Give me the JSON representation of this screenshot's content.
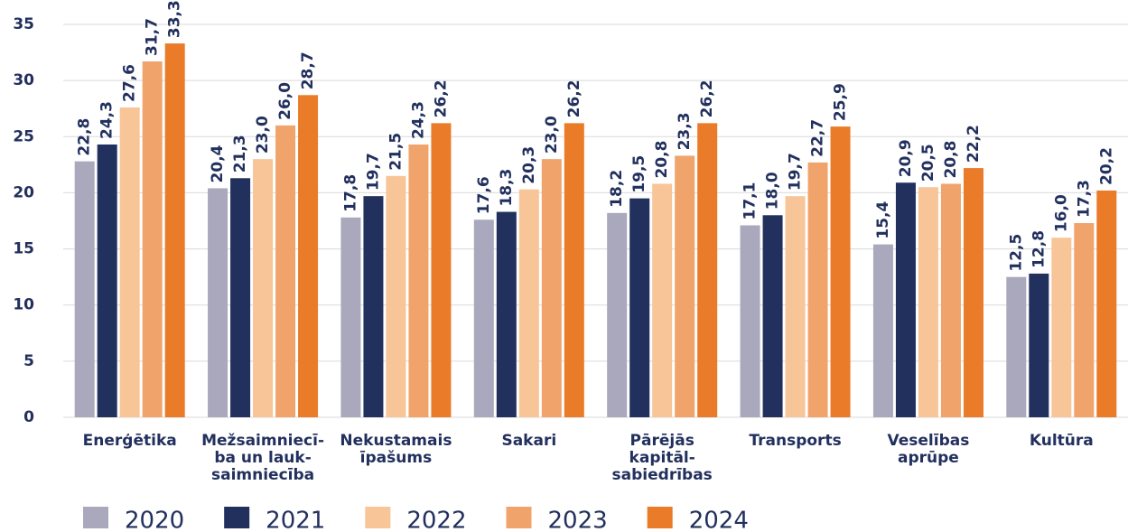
{
  "chart_data": {
    "type": "bar",
    "categories": [
      [
        "Enerģētika"
      ],
      [
        "Mežsaimniecī-",
        "ba un lauk-",
        "saimniecība"
      ],
      [
        "Nekustamais",
        "īpašums"
      ],
      [
        "Sakari"
      ],
      [
        "Pārējās",
        "kapitāl-",
        "sabiedrības"
      ],
      [
        "Transports"
      ],
      [
        "Veselības",
        "aprūpe"
      ],
      [
        "Kultūra"
      ]
    ],
    "series": [
      {
        "name": "2020",
        "color": "#a9a8bd",
        "values": [
          22.8,
          20.4,
          17.8,
          17.6,
          18.2,
          17.1,
          15.4,
          12.5
        ],
        "value_labels": [
          "22,8",
          "20,4",
          "17,8",
          "17,6",
          "18,2",
          "17,1",
          "15,4",
          "12,5"
        ]
      },
      {
        "name": "2021",
        "color": "#22305e",
        "values": [
          24.3,
          21.3,
          19.7,
          18.3,
          19.5,
          18.0,
          20.9,
          12.8
        ],
        "value_labels": [
          "24,3",
          "21,3",
          "19,7",
          "18,3",
          "19,5",
          "18,0",
          "20,9",
          "12,8"
        ]
      },
      {
        "name": "2022",
        "color": "#f7c597",
        "values": [
          27.6,
          23.0,
          21.5,
          20.3,
          20.8,
          19.7,
          20.5,
          16.0
        ],
        "value_labels": [
          "27,6",
          "23,0",
          "21,5",
          "20,3",
          "20,8",
          "19,7",
          "20,5",
          "16,0"
        ]
      },
      {
        "name": "2023",
        "color": "#f0a46b",
        "values": [
          31.7,
          26.0,
          24.3,
          23.0,
          23.3,
          22.7,
          20.8,
          17.3
        ],
        "value_labels": [
          "31,7",
          "26,0",
          "24,3",
          "23,0",
          "23,3",
          "22,7",
          "20,8",
          "17,3"
        ]
      },
      {
        "name": "2024",
        "color": "#ea7b29",
        "values": [
          33.3,
          28.7,
          26.2,
          26.2,
          26.2,
          25.9,
          22.2,
          20.2
        ],
        "value_labels": [
          "33,3",
          "28,7",
          "26,2",
          "26,2",
          "26,2",
          "25,9",
          "22,2",
          "20,2"
        ]
      }
    ],
    "ylim": [
      0,
      35
    ],
    "yticks": [
      0,
      5,
      10,
      15,
      20,
      25,
      30,
      35
    ],
    "grid": true
  }
}
